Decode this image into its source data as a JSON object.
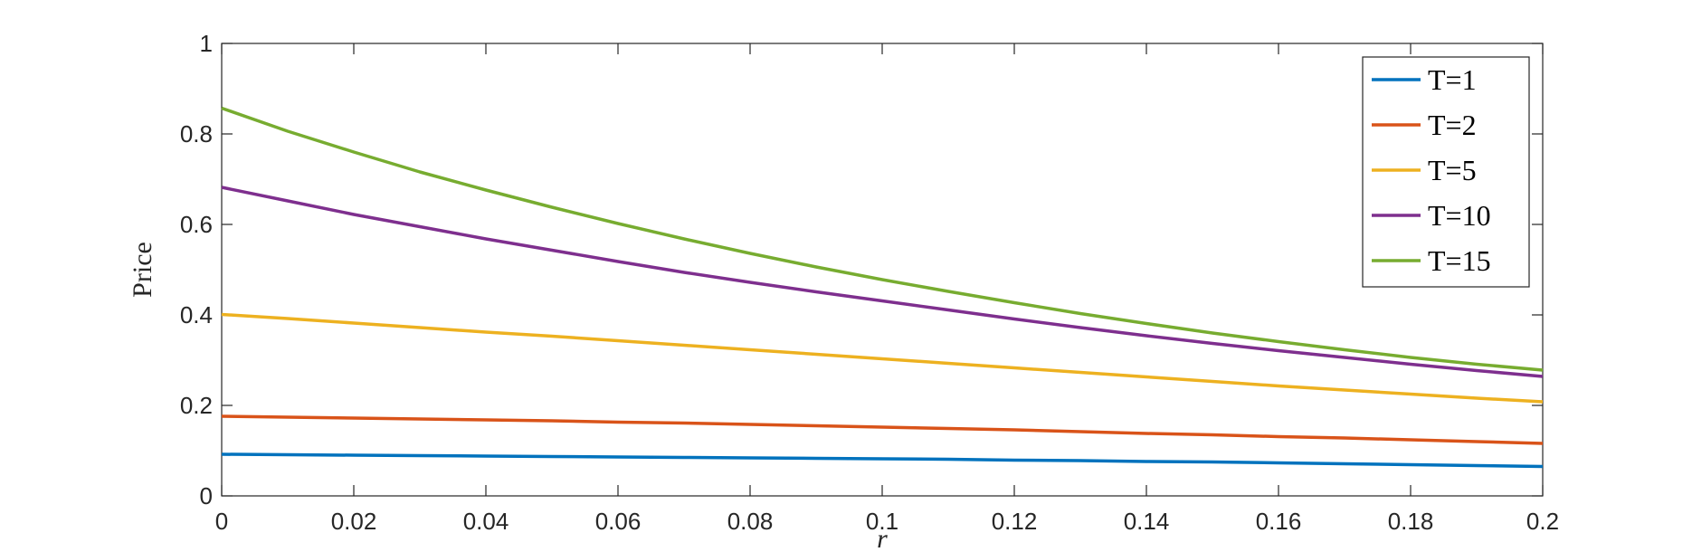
{
  "chart_data": {
    "type": "line",
    "xlabel": "r",
    "ylabel": "Price",
    "xlim": [
      0,
      0.2
    ],
    "ylim": [
      0,
      1
    ],
    "xticks": [
      "0",
      "0.02",
      "0.04",
      "0.06",
      "0.08",
      "0.1",
      "0.12",
      "0.14",
      "0.16",
      "0.18",
      "0.2"
    ],
    "yticks": [
      "0",
      "0.2",
      "0.4",
      "0.6",
      "0.8",
      "1"
    ],
    "grid": false,
    "legend_position": "top-right",
    "x": [
      0,
      0.01,
      0.02,
      0.03,
      0.04,
      0.05,
      0.06,
      0.07,
      0.08,
      0.09,
      0.1,
      0.11,
      0.12,
      0.13,
      0.14,
      0.15,
      0.16,
      0.17,
      0.18,
      0.19,
      0.2
    ],
    "series": [
      {
        "name": "T=1",
        "color": "#0072BD",
        "values": [
          0.092,
          0.091,
          0.09,
          0.089,
          0.088,
          0.087,
          0.086,
          0.085,
          0.084,
          0.083,
          0.082,
          0.081,
          0.079,
          0.078,
          0.076,
          0.075,
          0.073,
          0.071,
          0.069,
          0.067,
          0.065
        ]
      },
      {
        "name": "T=2",
        "color": "#D95319",
        "values": [
          0.176,
          0.174,
          0.172,
          0.17,
          0.168,
          0.166,
          0.163,
          0.161,
          0.158,
          0.155,
          0.152,
          0.149,
          0.146,
          0.142,
          0.138,
          0.135,
          0.131,
          0.128,
          0.124,
          0.12,
          0.116
        ]
      },
      {
        "name": "T=5",
        "color": "#EDB120",
        "values": [
          0.401,
          0.392,
          0.382,
          0.372,
          0.362,
          0.353,
          0.343,
          0.333,
          0.323,
          0.313,
          0.303,
          0.293,
          0.283,
          0.273,
          0.263,
          0.253,
          0.243,
          0.234,
          0.225,
          0.216,
          0.208
        ]
      },
      {
        "name": "T=10",
        "color": "#7E2F8E",
        "values": [
          0.682,
          0.652,
          0.622,
          0.595,
          0.568,
          0.543,
          0.518,
          0.494,
          0.472,
          0.451,
          0.431,
          0.411,
          0.391,
          0.372,
          0.354,
          0.337,
          0.321,
          0.306,
          0.291,
          0.277,
          0.264
        ]
      },
      {
        "name": "T=15",
        "color": "#77AC30",
        "values": [
          0.857,
          0.806,
          0.76,
          0.716,
          0.676,
          0.638,
          0.602,
          0.568,
          0.536,
          0.506,
          0.478,
          0.452,
          0.427,
          0.403,
          0.381,
          0.36,
          0.341,
          0.323,
          0.306,
          0.291,
          0.278
        ]
      }
    ]
  }
}
